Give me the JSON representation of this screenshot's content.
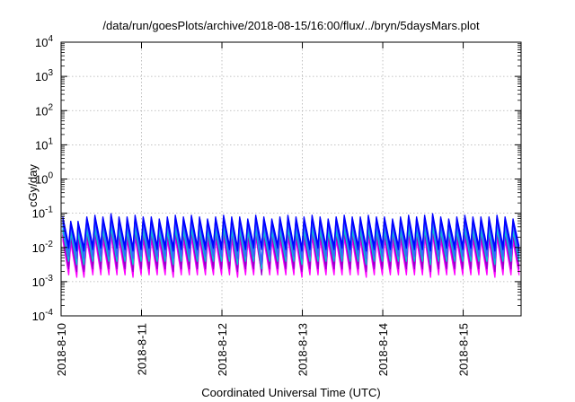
{
  "chart_data": {
    "type": "line",
    "title": "/data/run/goesPlots/archive/2018-08-15/16:00/flux/../bryn/5daysMars.plot",
    "xlabel": "Coordinated Universal Time (UTC)",
    "ylabel": "cGy/day",
    "y_scale": "log",
    "ylim": [
      0.0001,
      10000
    ],
    "xlim": [
      0,
      5.72
    ],
    "y_ticks": [
      {
        "mant": "10",
        "exp": "4",
        "value": 10000
      },
      {
        "mant": "10",
        "exp": "3",
        "value": 1000
      },
      {
        "mant": "10",
        "exp": "2",
        "value": 100
      },
      {
        "mant": "10",
        "exp": "1",
        "value": 10
      },
      {
        "mant": "10",
        "exp": "0",
        "value": 1
      },
      {
        "mant": "10",
        "exp": "-1",
        "value": 0.1
      },
      {
        "mant": "10",
        "exp": "-2",
        "value": 0.01
      },
      {
        "mant": "10",
        "exp": "-3",
        "value": 0.001
      },
      {
        "mant": "10",
        "exp": "-4",
        "value": 0.0001
      }
    ],
    "x_ticks": [
      {
        "label": "2018-8-10",
        "value": 0
      },
      {
        "label": "2018-8-11",
        "value": 1
      },
      {
        "label": "2018-8-12",
        "value": 2
      },
      {
        "label": "2018-8-13",
        "value": 3
      },
      {
        "label": "2018-8-14",
        "value": 4
      },
      {
        "label": "2018-8-15",
        "value": 5
      }
    ],
    "grid": true,
    "legend": false,
    "series_colors": [
      "#ff00ff",
      "#cc00cc",
      "#9900cc",
      "#3366ff",
      "#0000ff",
      "#00cccc",
      "#33aa66"
    ],
    "series": [
      {
        "color": "#0000ff",
        "x": [
          0.02,
          0.12,
          0.21,
          0.32,
          0.42,
          0.52,
          0.62,
          0.72,
          0.82,
          0.92,
          1.02,
          1.12,
          1.22,
          1.32,
          1.42,
          1.52,
          1.62,
          1.72,
          1.82,
          1.92,
          2.02,
          2.12,
          2.22,
          2.32,
          2.42,
          2.52,
          2.62,
          2.72,
          2.82,
          2.92,
          3.02,
          3.12,
          3.22,
          3.32,
          3.42,
          3.52,
          3.62,
          3.72,
          3.82,
          3.92,
          4.02,
          4.12,
          4.22,
          4.32,
          4.42,
          4.52,
          4.62,
          4.72,
          4.82,
          4.92,
          5.02,
          5.12,
          5.22,
          5.32,
          5.42,
          5.52,
          5.62
        ],
        "peaks": [
          0.08,
          0.06,
          0.06,
          0.08,
          0.09,
          0.08,
          0.1,
          0.08,
          0.08,
          0.09,
          0.08,
          0.08,
          0.07,
          0.08,
          0.09,
          0.08,
          0.09,
          0.08,
          0.07,
          0.08,
          0.09,
          0.08,
          0.08,
          0.07,
          0.09,
          0.08,
          0.07,
          0.08,
          0.09,
          0.08,
          0.08,
          0.09,
          0.08,
          0.07,
          0.08,
          0.09,
          0.08,
          0.08,
          0.09,
          0.08,
          0.08,
          0.07,
          0.08,
          0.09,
          0.08,
          0.09,
          0.1,
          0.08,
          0.07,
          0.08,
          0.09,
          0.08,
          0.08,
          0.08,
          0.09,
          0.08,
          0.07
        ],
        "troughs": [
          0.012,
          0.01,
          0.01,
          0.011,
          0.012,
          0.011,
          0.012,
          0.011,
          0.01,
          0.011,
          0.012,
          0.011,
          0.011,
          0.01,
          0.011,
          0.012,
          0.011,
          0.011,
          0.012,
          0.011,
          0.011,
          0.01,
          0.011,
          0.012,
          0.011,
          0.011,
          0.012,
          0.011,
          0.011,
          0.01,
          0.011,
          0.012,
          0.011,
          0.011,
          0.012,
          0.011,
          0.011,
          0.01,
          0.011,
          0.012,
          0.011,
          0.011,
          0.012,
          0.011,
          0.011,
          0.01,
          0.011,
          0.012,
          0.011,
          0.011,
          0.012,
          0.011,
          0.011,
          0.01,
          0.011,
          0.012,
          0.011
        ]
      },
      {
        "color": "#3366ff",
        "x": [
          0.02,
          0.12,
          0.21,
          0.32,
          0.42,
          0.52,
          0.62,
          0.72,
          0.82,
          0.92,
          1.02,
          1.12,
          1.22,
          1.32,
          1.42,
          1.52,
          1.62,
          1.72,
          1.82,
          1.92,
          2.02,
          2.12,
          2.22,
          2.32,
          2.42,
          2.52,
          2.62,
          2.72,
          2.82,
          2.92,
          3.02,
          3.12,
          3.22,
          3.32,
          3.42,
          3.52,
          3.62,
          3.72,
          3.82,
          3.92,
          4.02,
          4.12,
          4.22,
          4.32,
          4.42,
          4.52,
          4.62,
          4.72,
          4.82,
          4.92,
          5.02,
          5.12,
          5.22,
          5.32,
          5.42,
          5.52,
          5.62
        ],
        "peaks": [
          0.06,
          0.05,
          0.05,
          0.06,
          0.07,
          0.06,
          0.08,
          0.06,
          0.06,
          0.07,
          0.06,
          0.06,
          0.055,
          0.06,
          0.07,
          0.06,
          0.07,
          0.06,
          0.055,
          0.06,
          0.07,
          0.06,
          0.06,
          0.055,
          0.07,
          0.06,
          0.055,
          0.06,
          0.07,
          0.06,
          0.06,
          0.07,
          0.06,
          0.055,
          0.06,
          0.07,
          0.06,
          0.06,
          0.07,
          0.06,
          0.06,
          0.055,
          0.06,
          0.07,
          0.06,
          0.07,
          0.08,
          0.06,
          0.055,
          0.06,
          0.07,
          0.06,
          0.06,
          0.06,
          0.07,
          0.06,
          0.055
        ],
        "troughs": [
          0.007,
          0.006,
          0.006,
          0.007,
          0.007,
          0.007,
          0.007,
          0.007,
          0.006,
          0.007,
          0.007,
          0.007,
          0.007,
          0.006,
          0.007,
          0.007,
          0.007,
          0.007,
          0.007,
          0.007,
          0.007,
          0.006,
          0.007,
          0.007,
          0.004,
          0.007,
          0.007,
          0.007,
          0.007,
          0.006,
          0.007,
          0.007,
          0.007,
          0.007,
          0.007,
          0.007,
          0.007,
          0.006,
          0.007,
          0.007,
          0.007,
          0.007,
          0.007,
          0.007,
          0.007,
          0.006,
          0.007,
          0.007,
          0.007,
          0.007,
          0.007,
          0.007,
          0.007,
          0.006,
          0.007,
          0.007,
          0.007
        ]
      },
      {
        "color": "#00cccc",
        "x": [
          0.02,
          0.12,
          0.21,
          0.32,
          0.42,
          0.52,
          0.62,
          0.72,
          0.82,
          0.92,
          1.02,
          1.12,
          1.22,
          1.32,
          1.42,
          1.52,
          1.62,
          1.72,
          1.82,
          1.92,
          2.02,
          2.12,
          2.22,
          2.32,
          2.42,
          2.52,
          2.62,
          2.72,
          2.82,
          2.92,
          3.02,
          3.12,
          3.22,
          3.32,
          3.42,
          3.52,
          3.62,
          3.72,
          3.82,
          3.92,
          4.02,
          4.12,
          4.22,
          4.32,
          4.42,
          4.52,
          4.62,
          4.72,
          4.82,
          4.92,
          5.02,
          5.12,
          5.22,
          5.32,
          5.42,
          5.52,
          5.62
        ],
        "peaks": [
          0.04,
          0.035,
          0.035,
          0.04,
          0.045,
          0.04,
          0.05,
          0.04,
          0.04,
          0.045,
          0.04,
          0.04,
          0.038,
          0.04,
          0.045,
          0.04,
          0.045,
          0.04,
          0.038,
          0.04,
          0.045,
          0.04,
          0.04,
          0.038,
          0.045,
          0.04,
          0.038,
          0.04,
          0.045,
          0.04,
          0.04,
          0.045,
          0.04,
          0.038,
          0.04,
          0.045,
          0.04,
          0.04,
          0.045,
          0.04,
          0.04,
          0.038,
          0.04,
          0.045,
          0.04,
          0.045,
          0.05,
          0.04,
          0.038,
          0.04,
          0.045,
          0.04,
          0.04,
          0.04,
          0.045,
          0.04,
          0.038
        ],
        "troughs": [
          0.005,
          0.004,
          0.004,
          0.005,
          0.005,
          0.005,
          0.005,
          0.005,
          0.004,
          0.005,
          0.005,
          0.005,
          0.005,
          0.004,
          0.005,
          0.005,
          0.005,
          0.005,
          0.005,
          0.005,
          0.005,
          0.004,
          0.005,
          0.005,
          0.003,
          0.005,
          0.005,
          0.005,
          0.005,
          0.004,
          0.005,
          0.005,
          0.005,
          0.005,
          0.005,
          0.005,
          0.005,
          0.004,
          0.005,
          0.005,
          0.005,
          0.005,
          0.005,
          0.005,
          0.005,
          0.004,
          0.005,
          0.005,
          0.005,
          0.005,
          0.005,
          0.005,
          0.005,
          0.004,
          0.005,
          0.005,
          0.005
        ]
      },
      {
        "color": "#9900cc",
        "x": [
          0.02,
          0.12,
          0.21,
          0.32,
          0.42,
          0.52,
          0.62,
          0.72,
          0.82,
          0.92,
          1.02,
          1.12,
          1.22,
          1.32,
          1.42,
          1.52,
          1.62,
          1.72,
          1.82,
          1.92,
          2.02,
          2.12,
          2.22,
          2.32,
          2.42,
          2.52,
          2.62,
          2.72,
          2.82,
          2.92,
          3.02,
          3.12,
          3.22,
          3.32,
          3.42,
          3.52,
          3.62,
          3.72,
          3.82,
          3.92,
          4.02,
          4.12,
          4.22,
          4.32,
          4.42,
          4.52,
          4.62,
          4.72,
          4.82,
          4.92,
          5.02,
          5.12,
          5.22,
          5.32,
          5.42,
          5.52,
          5.62
        ],
        "peaks": [
          0.03,
          0.025,
          0.025,
          0.03,
          0.035,
          0.03,
          0.04,
          0.03,
          0.03,
          0.035,
          0.03,
          0.03,
          0.028,
          0.03,
          0.035,
          0.03,
          0.035,
          0.03,
          0.028,
          0.03,
          0.035,
          0.03,
          0.03,
          0.028,
          0.035,
          0.03,
          0.028,
          0.03,
          0.035,
          0.03,
          0.03,
          0.035,
          0.03,
          0.028,
          0.03,
          0.035,
          0.03,
          0.03,
          0.035,
          0.03,
          0.03,
          0.028,
          0.03,
          0.035,
          0.03,
          0.035,
          0.04,
          0.03,
          0.028,
          0.03,
          0.035,
          0.03,
          0.03,
          0.03,
          0.035,
          0.03,
          0.028
        ],
        "troughs": [
          0.003,
          0.0025,
          0.0025,
          0.003,
          0.003,
          0.003,
          0.003,
          0.003,
          0.0025,
          0.003,
          0.003,
          0.003,
          0.003,
          0.0025,
          0.003,
          0.003,
          0.003,
          0.003,
          0.003,
          0.003,
          0.003,
          0.0025,
          0.003,
          0.003,
          0.002,
          0.003,
          0.003,
          0.003,
          0.003,
          0.0025,
          0.003,
          0.003,
          0.003,
          0.003,
          0.003,
          0.003,
          0.003,
          0.0025,
          0.003,
          0.003,
          0.003,
          0.003,
          0.003,
          0.003,
          0.003,
          0.0025,
          0.003,
          0.003,
          0.003,
          0.003,
          0.003,
          0.003,
          0.003,
          0.0025,
          0.003,
          0.003,
          0.003
        ]
      },
      {
        "color": "#ff00ff",
        "x": [
          0.02,
          0.12,
          0.21,
          0.32,
          0.42,
          0.52,
          0.62,
          0.72,
          0.82,
          0.92,
          1.02,
          1.12,
          1.22,
          1.32,
          1.42,
          1.52,
          1.62,
          1.72,
          1.82,
          1.92,
          2.02,
          2.12,
          2.22,
          2.32,
          2.42,
          2.52,
          2.62,
          2.72,
          2.82,
          2.92,
          3.02,
          3.12,
          3.22,
          3.32,
          3.42,
          3.52,
          3.62,
          3.72,
          3.82,
          3.92,
          4.02,
          4.12,
          4.22,
          4.32,
          4.42,
          4.52,
          4.62,
          4.72,
          4.82,
          4.92,
          5.02,
          5.12,
          5.22,
          5.32,
          5.42,
          5.52,
          5.62
        ],
        "peaks": [
          0.022,
          0.018,
          0.018,
          0.022,
          0.026,
          0.022,
          0.03,
          0.022,
          0.022,
          0.026,
          0.022,
          0.022,
          0.02,
          0.022,
          0.026,
          0.022,
          0.026,
          0.022,
          0.02,
          0.022,
          0.026,
          0.022,
          0.022,
          0.02,
          0.026,
          0.022,
          0.02,
          0.022,
          0.026,
          0.022,
          0.022,
          0.026,
          0.022,
          0.02,
          0.022,
          0.026,
          0.022,
          0.022,
          0.026,
          0.022,
          0.022,
          0.02,
          0.022,
          0.026,
          0.022,
          0.026,
          0.03,
          0.022,
          0.02,
          0.022,
          0.026,
          0.022,
          0.022,
          0.022,
          0.026,
          0.022,
          0.02
        ],
        "troughs": [
          0.002,
          0.0017,
          0.0017,
          0.002,
          0.002,
          0.002,
          0.002,
          0.002,
          0.0017,
          0.002,
          0.002,
          0.002,
          0.002,
          0.0017,
          0.002,
          0.002,
          0.002,
          0.002,
          0.002,
          0.002,
          0.002,
          0.0017,
          0.002,
          0.002,
          0.0022,
          0.002,
          0.002,
          0.002,
          0.002,
          0.0017,
          0.002,
          0.002,
          0.002,
          0.002,
          0.002,
          0.002,
          0.002,
          0.0017,
          0.002,
          0.002,
          0.002,
          0.002,
          0.002,
          0.002,
          0.002,
          0.0017,
          0.002,
          0.002,
          0.002,
          0.002,
          0.002,
          0.002,
          0.002,
          0.0017,
          0.002,
          0.002,
          0.002
        ]
      }
    ]
  }
}
